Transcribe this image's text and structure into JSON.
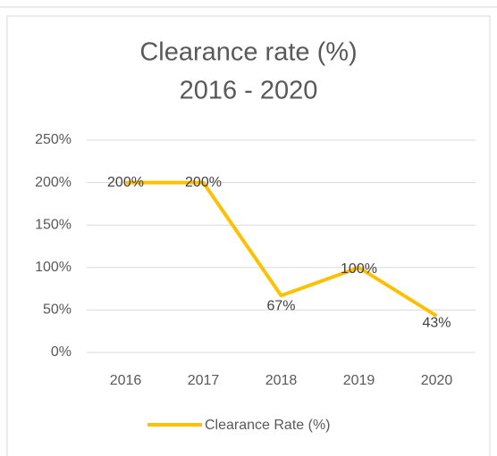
{
  "chart_data": {
    "type": "line",
    "title": "Clearance rate (%)",
    "subtitle": "2016 - 2020",
    "categories": [
      "2016",
      "2017",
      "2018",
      "2019",
      "2020"
    ],
    "series": [
      {
        "name": "Clearance Rate (%)",
        "color": "#ffc000",
        "values": [
          200,
          200,
          67,
          100,
          43
        ],
        "value_labels": [
          "200%",
          "200%",
          "67%",
          "100%",
          "43%"
        ]
      }
    ],
    "ylim": [
      0,
      250
    ],
    "yticks": [
      {
        "value": 0,
        "label": "0%"
      },
      {
        "value": 50,
        "label": "50%"
      },
      {
        "value": 100,
        "label": "100%"
      },
      {
        "value": 150,
        "label": "150%"
      },
      {
        "value": 200,
        "label": "200%"
      },
      {
        "value": 250,
        "label": "250%"
      }
    ],
    "grid": true,
    "legend": "bottom"
  }
}
